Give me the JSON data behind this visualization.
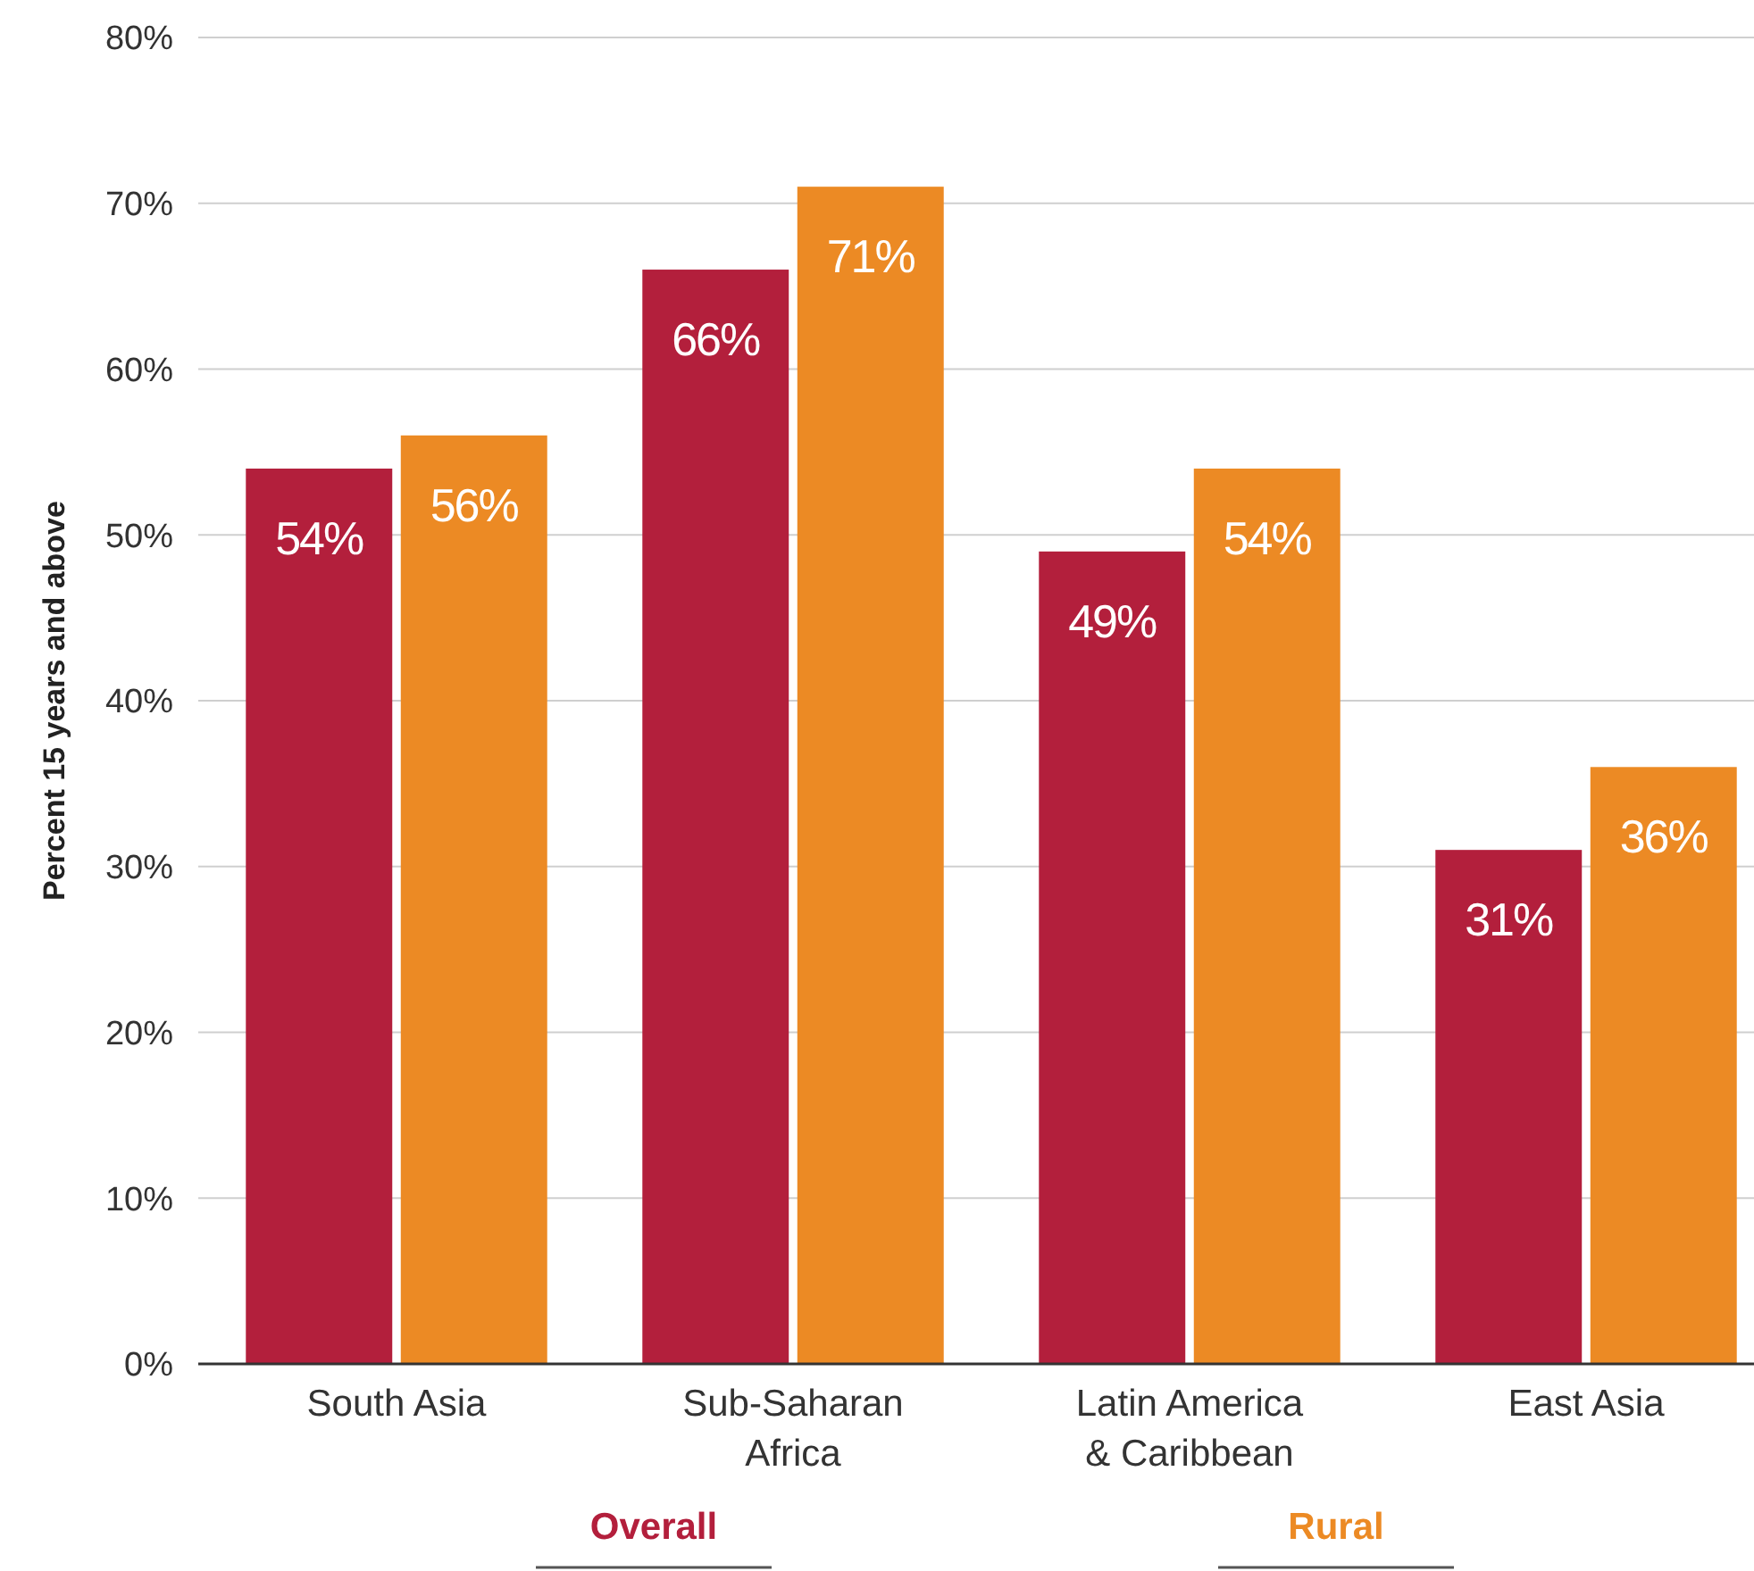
{
  "chart_data": {
    "type": "bar",
    "ylabel": "Percent 15 years and above",
    "categories": [
      "South Asia",
      "Sub-Saharan Africa",
      "Latin America & Caribbean",
      "East Asia"
    ],
    "series": [
      {
        "name": "Overall",
        "color": "#b31f3c",
        "values": [
          54,
          66,
          49,
          31
        ],
        "value_labels": [
          "54%",
          "66%",
          "49%",
          "31%"
        ]
      },
      {
        "name": "Rural",
        "color": "#ec8a24",
        "values": [
          56,
          71,
          54,
          36
        ],
        "value_labels": [
          "56%",
          "71%",
          "54%",
          "36%"
        ]
      }
    ],
    "ylim": [
      0,
      80
    ],
    "yticks": [
      {
        "value": 0,
        "label": "0%"
      },
      {
        "value": 10,
        "label": "10%"
      },
      {
        "value": 20,
        "label": "20%"
      },
      {
        "value": 30,
        "label": "30%"
      },
      {
        "value": 40,
        "label": "40%"
      },
      {
        "value": 50,
        "label": "50%"
      },
      {
        "value": 60,
        "label": "60%"
      },
      {
        "value": 70,
        "label": "70%"
      },
      {
        "value": 80,
        "label": "80%"
      }
    ],
    "grid": "y",
    "legend": "bottom"
  }
}
